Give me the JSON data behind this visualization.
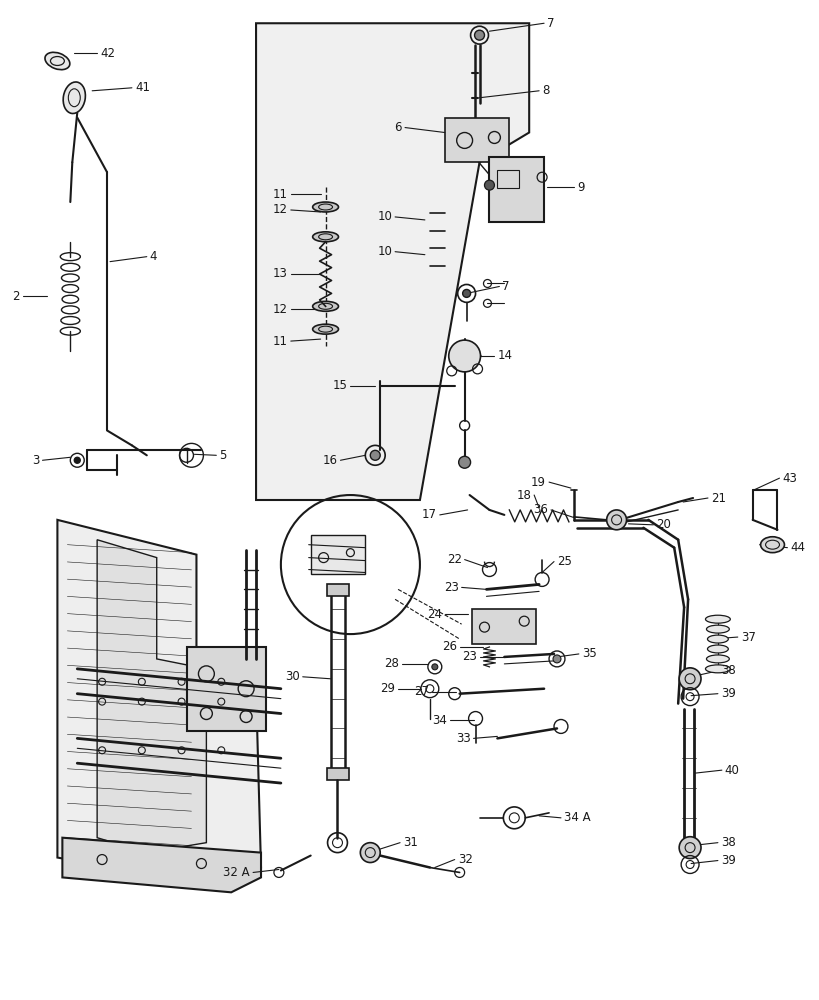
{
  "bg_color": "#ffffff",
  "line_color": "#1a1a1a",
  "fig_width": 8.2,
  "fig_height": 10.0,
  "dpi": 100
}
